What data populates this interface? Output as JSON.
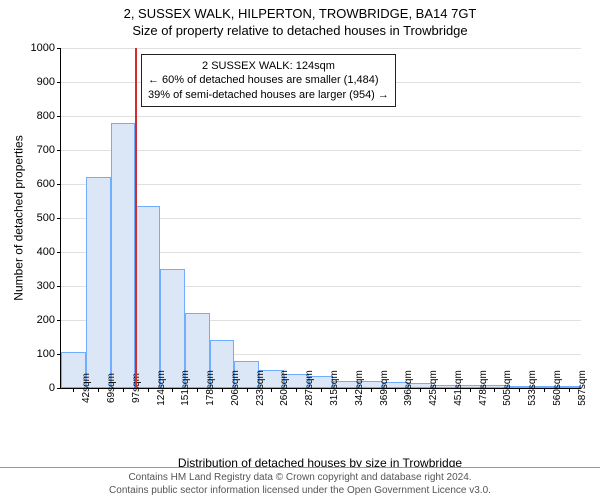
{
  "header": {
    "address": "2, SUSSEX WALK, HILPERTON, TROWBRIDGE, BA14 7GT",
    "subtitle": "Size of property relative to detached houses in Trowbridge"
  },
  "chart": {
    "type": "histogram",
    "ylabel": "Number of detached properties",
    "xlabel": "Distribution of detached houses by size in Trowbridge",
    "ylim": [
      0,
      1000
    ],
    "ytick_step": 100,
    "yticks": [
      0,
      100,
      200,
      300,
      400,
      500,
      600,
      700,
      800,
      900,
      1000
    ],
    "xticks": [
      "42sqm",
      "69sqm",
      "97sqm",
      "124sqm",
      "151sqm",
      "178sqm",
      "206sqm",
      "233sqm",
      "260sqm",
      "287sqm",
      "315sqm",
      "342sqm",
      "369sqm",
      "396sqm",
      "425sqm",
      "451sqm",
      "478sqm",
      "505sqm",
      "533sqm",
      "560sqm",
      "587sqm"
    ],
    "bar_values": [
      105,
      620,
      780,
      535,
      350,
      220,
      140,
      80,
      52,
      42,
      35,
      22,
      22,
      18,
      14,
      10,
      10,
      8,
      6,
      4,
      4
    ],
    "bar_fill": "#dbe7f6",
    "bar_border": "#6faeff",
    "background_color": "#ffffff",
    "grid_color": "#e0e0e0",
    "axis_color": "#000000",
    "marker": {
      "x_index": 3,
      "color": "#d22c2c",
      "width": 2
    },
    "annotation": {
      "line1": "2 SUSSEX WALK: 124sqm",
      "line2": "← 60% of detached houses are smaller (1,484)",
      "line3": "39% of semi-detached houses are larger (954) →",
      "border": "#222222",
      "bg": "#ffffff",
      "fontsize": 11
    }
  },
  "footer": {
    "line1": "Contains HM Land Registry data © Crown copyright and database right 2024.",
    "line2": "Contains public sector information licensed under the Open Government Licence v3.0."
  }
}
